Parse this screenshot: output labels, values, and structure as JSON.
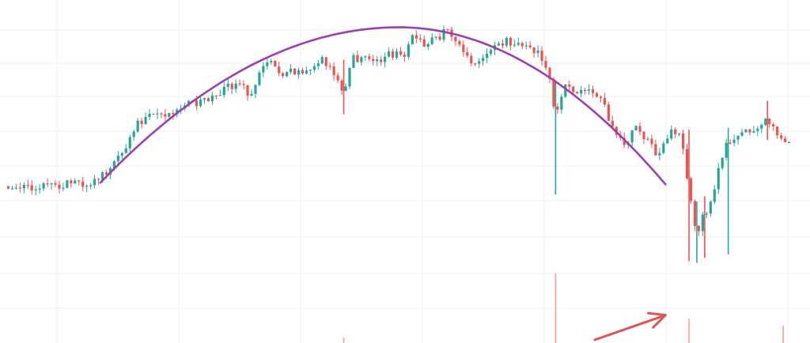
{
  "chart_data": {
    "type": "candlestick",
    "title": "",
    "xlabel": "",
    "ylabel": "",
    "grid": true,
    "legend": "none",
    "xlim": [
      0,
      100
    ],
    "ylim": [
      0,
      100
    ],
    "colors": {
      "up": "#26a69a",
      "down": "#ef5350",
      "arc": "#9c3fb0",
      "arrow": "#e05555",
      "grid": "#f0f0f0",
      "background": "#ffffff"
    },
    "price_path": [
      [
        0,
        45.5
      ],
      [
        3,
        44.8
      ],
      [
        6,
        45.9
      ],
      [
        9,
        46.4
      ],
      [
        11,
        45.7
      ],
      [
        12,
        48.5
      ],
      [
        14,
        52.5
      ],
      [
        16,
        60.5
      ],
      [
        17,
        64.5
      ],
      [
        18,
        66.0
      ],
      [
        20,
        65.5
      ],
      [
        22,
        68.5
      ],
      [
        24,
        70.0
      ],
      [
        26,
        70.5
      ],
      [
        28,
        74.5
      ],
      [
        30,
        75.0
      ],
      [
        31,
        71.5
      ],
      [
        32,
        76.5
      ],
      [
        33,
        82.5
      ],
      [
        35,
        78.5
      ],
      [
        37,
        79.0
      ],
      [
        39,
        78.5
      ],
      [
        40,
        83.5
      ],
      [
        41,
        80.5
      ],
      [
        42,
        78.0
      ],
      [
        43,
        73.5
      ],
      [
        44,
        83.0
      ],
      [
        46,
        82.5
      ],
      [
        48,
        83.0
      ],
      [
        50,
        85.0
      ],
      [
        51,
        84.5
      ],
      [
        52,
        90.0
      ],
      [
        53,
        87.0
      ],
      [
        54,
        88.0
      ],
      [
        56,
        90.5
      ],
      [
        57,
        89.0
      ],
      [
        59,
        83.0
      ],
      [
        60,
        81.5
      ],
      [
        62,
        86.0
      ],
      [
        64,
        88.0
      ],
      [
        66,
        86.5
      ],
      [
        68,
        84.0
      ],
      [
        69,
        80.0
      ],
      [
        70,
        64.0
      ],
      [
        71,
        75.0
      ],
      [
        73,
        73.5
      ],
      [
        75,
        72.5
      ],
      [
        76,
        69.5
      ],
      [
        77,
        64.0
      ],
      [
        78,
        60.5
      ],
      [
        79,
        57.5
      ],
      [
        80,
        63.0
      ],
      [
        81,
        60.5
      ],
      [
        82,
        57.5
      ],
      [
        83,
        55.0
      ],
      [
        84,
        59.5
      ],
      [
        85,
        61.5
      ],
      [
        86,
        59.5
      ],
      [
        87,
        44.0
      ],
      [
        88,
        32.0
      ],
      [
        89,
        37.5
      ],
      [
        90,
        42.0
      ],
      [
        91,
        52.0
      ],
      [
        92,
        59.0
      ],
      [
        94,
        61.0
      ],
      [
        96,
        62.5
      ],
      [
        97,
        66.0
      ],
      [
        98,
        61.0
      ],
      [
        99,
        58.5
      ],
      [
        100,
        60.0
      ]
    ],
    "wicks": [
      {
        "x": 43,
        "high": 82.5,
        "low": 66.5
      },
      {
        "x": 70,
        "high": 76.5,
        "low": 43.0
      },
      {
        "x": 87,
        "high": 62.0,
        "low": 23.5
      },
      {
        "x": 88,
        "high": 41.0,
        "low": 23.0
      },
      {
        "x": 89,
        "high": 42.5,
        "low": 24.5
      },
      {
        "x": 92,
        "high": 62.5,
        "low": 25.5
      },
      {
        "x": 97,
        "high": 70.5,
        "low": 59.0
      }
    ],
    "volume_spikes": [
      {
        "x": 43,
        "value": 8
      },
      {
        "x": 70,
        "value": 100
      },
      {
        "x": 87,
        "value": 35
      },
      {
        "x": 99,
        "value": 25
      }
    ],
    "annotations": [
      {
        "kind": "arc",
        "x_start": 12,
        "x_end": 84,
        "x_peak": 50,
        "y_start": 46.5,
        "y_peak": 92.0
      },
      {
        "kind": "arrow",
        "x_from": 75,
        "y_from": 0,
        "x_to": 84,
        "y_to": 40
      }
    ]
  }
}
